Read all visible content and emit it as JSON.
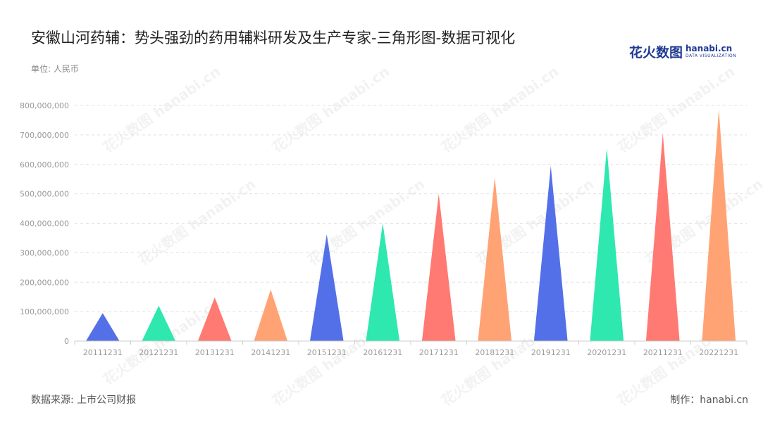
{
  "title": "安徽山河药辅：势头强劲的药用辅料研发及生产专家-三角形图-数据可视化",
  "unit": "单位: 人民币",
  "logo": {
    "cn": "花火数图",
    "en": "hanabi.cn",
    "en_sub": "DATA VISUALIZATION"
  },
  "watermark": "花火数图 hanabi.cn",
  "footer": {
    "source": "数据来源: 上市公司财报",
    "maker": "制作：hanabi.cn"
  },
  "chart_data": {
    "type": "bar",
    "shape": "triangle",
    "categories": [
      "20111231",
      "20121231",
      "20131231",
      "20141231",
      "20151231",
      "20161231",
      "20171231",
      "20181231",
      "20191231",
      "20201231",
      "20211231",
      "20221231"
    ],
    "values": [
      95000000,
      120000000,
      148000000,
      175000000,
      362000000,
      400000000,
      500000000,
      556000000,
      595000000,
      655000000,
      705000000,
      787000000
    ],
    "colors": [
      "#5470e8",
      "#2ee8b0",
      "#ff7a72",
      "#ffa374",
      "#5470e8",
      "#2ee8b0",
      "#ff7a72",
      "#ffa374",
      "#5470e8",
      "#2ee8b0",
      "#ff7a72",
      "#ffa374"
    ],
    "yticks": [
      "0",
      "100,000,000",
      "200,000,000",
      "300,000,000",
      "400,000,000",
      "500,000,000",
      "600,000,000",
      "700,000,000",
      "800,000,000"
    ],
    "ylim": [
      0,
      800000000
    ],
    "grid": true,
    "gridColor": "#e0e0e0",
    "axisColor": "#cccccc"
  }
}
